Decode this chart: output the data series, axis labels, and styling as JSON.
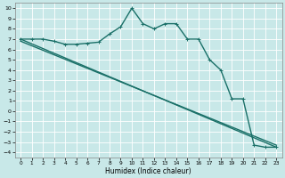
{
  "xlabel": "Humidex (Indice chaleur)",
  "xlim": [
    -0.5,
    23.5
  ],
  "ylim": [
    -4.5,
    10.5
  ],
  "xticks": [
    0,
    1,
    2,
    3,
    4,
    5,
    6,
    7,
    8,
    9,
    10,
    11,
    12,
    13,
    14,
    15,
    16,
    17,
    18,
    19,
    20,
    21,
    22,
    23
  ],
  "yticks": [
    -4,
    -3,
    -2,
    -1,
    0,
    1,
    2,
    3,
    4,
    5,
    6,
    7,
    8,
    9,
    10
  ],
  "bg_color": "#c8e8e8",
  "grid_color": "#b0d8d8",
  "line_color": "#1a7068",
  "line1_x": [
    0,
    1,
    2,
    3,
    4,
    5,
    6,
    7,
    8,
    9,
    10,
    11,
    12,
    13,
    14,
    15,
    16,
    17,
    18,
    19,
    20,
    21,
    22,
    23
  ],
  "line1_y": [
    7.0,
    7.0,
    7.0,
    6.8,
    6.5,
    6.5,
    6.6,
    6.7,
    7.5,
    8.2,
    10.0,
    8.5,
    8.0,
    8.5,
    8.5,
    7.0,
    7.0,
    5.0,
    4.0,
    1.2,
    1.2,
    -3.3,
    -3.5,
    -3.5
  ],
  "line2_x": [
    0,
    23
  ],
  "line2_y": [
    7.0,
    -3.5
  ],
  "line3_x": [
    0,
    23
  ],
  "line3_y": [
    6.8,
    -3.3
  ],
  "line_width": 1.0,
  "marker": "+"
}
